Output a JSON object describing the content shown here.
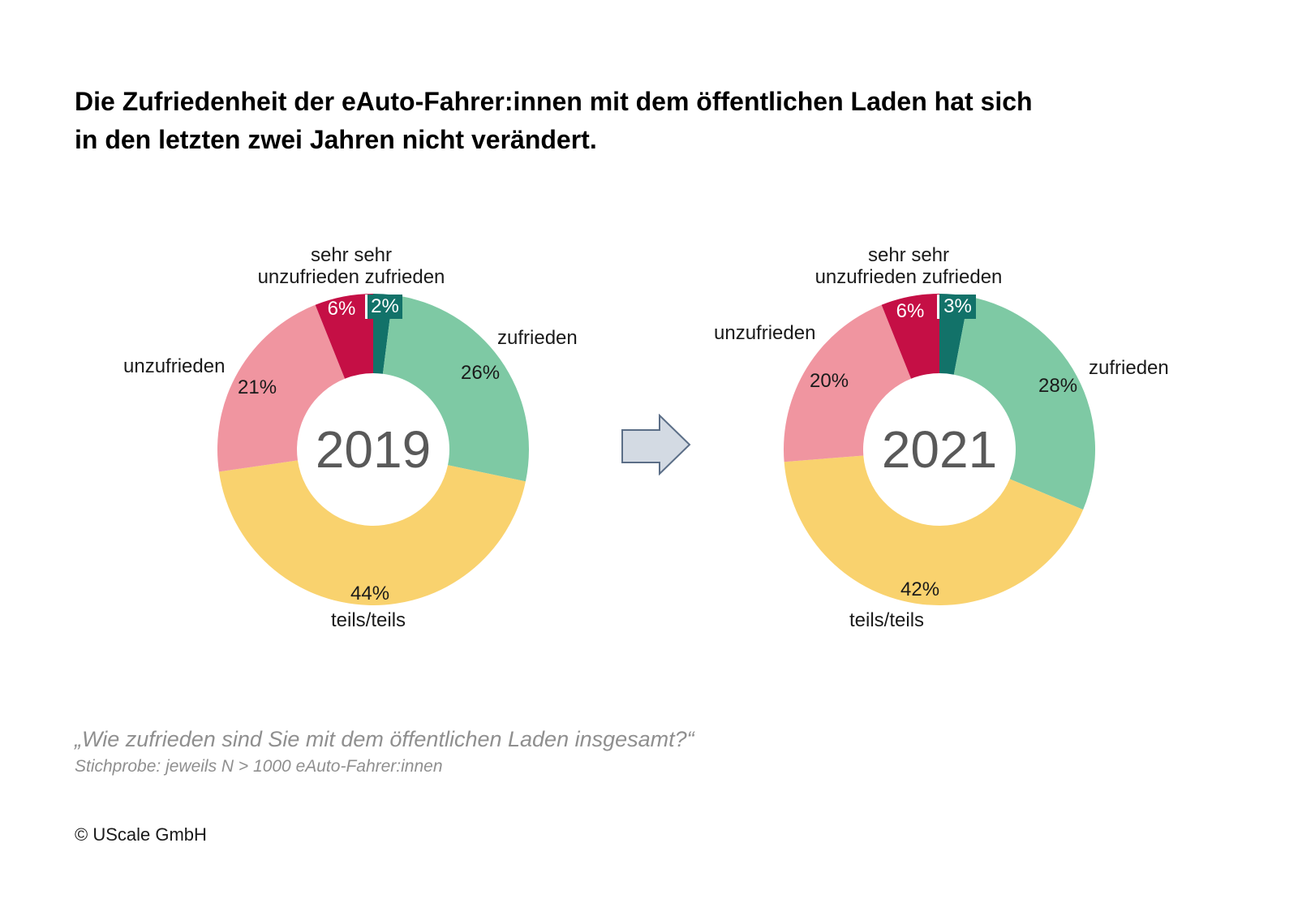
{
  "title": "Die Zufriedenheit der eAuto-Fahrer:innen mit dem öffentlichen Laden hat sich\nin den letzten zwei Jahren nicht verändert.",
  "arrow": {
    "direction": "right",
    "fill": "#d3dae3",
    "stroke": "#5b6e87"
  },
  "footnote": {
    "question": "„Wie zufrieden sind Sie mit dem öffentlichen Laden insgesamt?“",
    "sample": "Stichprobe: jeweils N > 1000 eAuto-Fahrer:innen",
    "copyright": "© UScale GmbH"
  },
  "chart_data": [
    {
      "type": "pie",
      "subtype": "donut",
      "title": "2019",
      "categories": [
        "sehr zufrieden",
        "zufrieden",
        "teils/teils",
        "unzufrieden",
        "sehr unzufrieden"
      ],
      "values": [
        2,
        26,
        44,
        21,
        6
      ],
      "unit": "%",
      "colors": [
        "#127269",
        "#7ec9a4",
        "#f9d26e",
        "#f095a0",
        "#c50f45"
      ],
      "start_angle_deg": 0,
      "direction": "clockwise",
      "labels": {
        "top_line1": "sehr sehr",
        "top_line2": "unzufrieden zufrieden",
        "sehr_zufrieden_pct": "2%",
        "zufrieden": "zufrieden",
        "zufrieden_pct": "26%",
        "teils": "teils/teils",
        "teils_pct": "44%",
        "unzufrieden": "unzufrieden",
        "unzufrieden_pct": "21%",
        "sehr_unzufrieden_pct": "6%"
      }
    },
    {
      "type": "pie",
      "subtype": "donut",
      "title": "2021",
      "categories": [
        "sehr zufrieden",
        "zufrieden",
        "teils/teils",
        "unzufrieden",
        "sehr unzufrieden"
      ],
      "values": [
        3,
        28,
        42,
        20,
        6
      ],
      "unit": "%",
      "colors": [
        "#127269",
        "#7ec9a4",
        "#f9d26e",
        "#f095a0",
        "#c50f45"
      ],
      "start_angle_deg": 0,
      "direction": "clockwise",
      "labels": {
        "top_line1": "sehr sehr",
        "top_line2": "unzufrieden zufrieden",
        "sehr_zufrieden_pct": "3%",
        "zufrieden": "zufrieden",
        "zufrieden_pct": "28%",
        "teils": "teils/teils",
        "teils_pct": "42%",
        "unzufrieden": "unzufrieden",
        "unzufrieden_pct": "20%",
        "sehr_unzufrieden_pct": "6%"
      }
    }
  ]
}
